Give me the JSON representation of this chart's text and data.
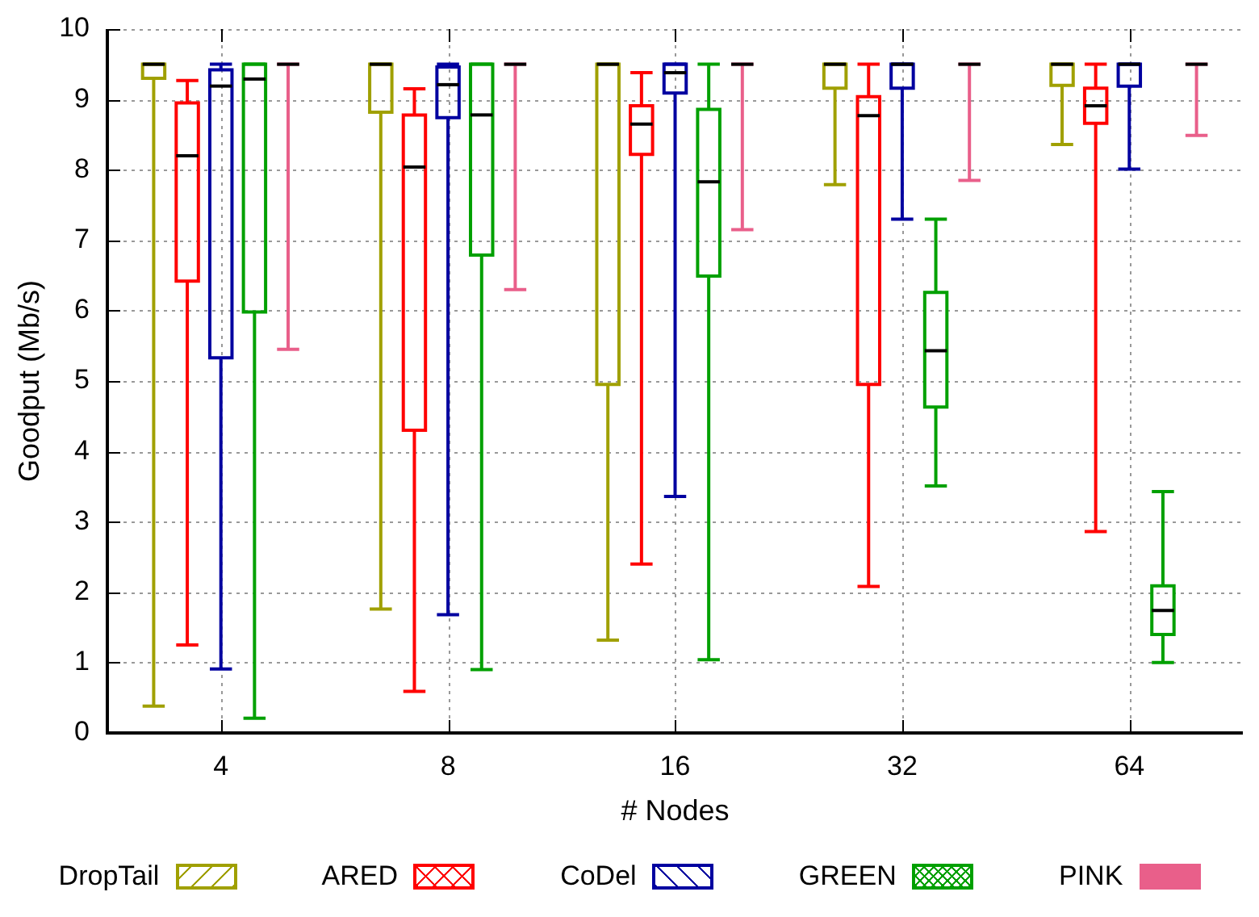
{
  "chart_data": {
    "type": "box",
    "xlabel": "# Nodes",
    "ylabel": "Goodput (Mb/s)",
    "categories": [
      "4",
      "8",
      "16",
      "32",
      "64"
    ],
    "ylim": [
      0,
      10
    ],
    "yticks": [
      0,
      1,
      2,
      3,
      4,
      5,
      6,
      7,
      8,
      9,
      10
    ],
    "grid": true,
    "legend": "bottom",
    "series": [
      {
        "name": "DropTail",
        "color": "#a0a000",
        "boxes": [
          {
            "low": 0.38,
            "q1": 9.3,
            "median": 9.5,
            "q3": 9.5,
            "high": 9.5
          },
          {
            "low": 1.76,
            "q1": 8.82,
            "median": 9.5,
            "q3": 9.5,
            "high": 9.5
          },
          {
            "low": 1.32,
            "q1": 4.95,
            "median": 9.5,
            "q3": 9.5,
            "high": 9.5
          },
          {
            "low": 7.79,
            "q1": 9.16,
            "median": 9.5,
            "q3": 9.5,
            "high": 9.5
          },
          {
            "low": 8.36,
            "q1": 9.2,
            "median": 9.5,
            "q3": 9.5,
            "high": 9.5
          }
        ]
      },
      {
        "name": "ARED",
        "color": "#ff0000",
        "boxes": [
          {
            "low": 1.25,
            "q1": 6.42,
            "median": 8.2,
            "q3": 8.95,
            "high": 9.27
          },
          {
            "low": 0.59,
            "q1": 4.3,
            "median": 8.04,
            "q3": 8.78,
            "high": 9.15
          },
          {
            "low": 2.4,
            "q1": 8.22,
            "median": 8.65,
            "q3": 8.91,
            "high": 9.38
          },
          {
            "low": 2.08,
            "q1": 4.95,
            "median": 8.77,
            "q3": 9.04,
            "high": 9.5
          },
          {
            "low": 2.86,
            "q1": 8.66,
            "median": 8.91,
            "q3": 9.16,
            "high": 9.5
          }
        ]
      },
      {
        "name": "CoDel",
        "color": "#0000a0",
        "boxes": [
          {
            "low": 0.91,
            "q1": 5.33,
            "median": 9.19,
            "q3": 9.42,
            "high": 9.5
          },
          {
            "low": 1.68,
            "q1": 8.74,
            "median": 9.21,
            "q3": 9.46,
            "high": 9.5
          },
          {
            "low": 3.36,
            "q1": 9.09,
            "median": 9.38,
            "q3": 9.5,
            "high": 9.5
          },
          {
            "low": 7.3,
            "q1": 9.16,
            "median": 9.5,
            "q3": 9.5,
            "high": 9.5
          },
          {
            "low": 8.01,
            "q1": 9.19,
            "median": 9.5,
            "q3": 9.5,
            "high": 9.5
          }
        ]
      },
      {
        "name": "GREEN",
        "color": "#00a000",
        "boxes": [
          {
            "low": 0.21,
            "q1": 5.98,
            "median": 9.29,
            "q3": 9.5,
            "high": 9.5
          },
          {
            "low": 0.9,
            "q1": 6.79,
            "median": 8.78,
            "q3": 9.5,
            "high": 9.5
          },
          {
            "low": 1.04,
            "q1": 6.49,
            "median": 7.83,
            "q3": 8.86,
            "high": 9.5
          },
          {
            "low": 3.51,
            "q1": 4.63,
            "median": 5.43,
            "q3": 6.26,
            "high": 7.3
          },
          {
            "low": 1.0,
            "q1": 1.4,
            "median": 1.74,
            "q3": 2.09,
            "high": 3.43
          }
        ]
      },
      {
        "name": "PINK",
        "color": "#e95f8a",
        "boxes": [
          {
            "low": 5.45,
            "q1": 9.5,
            "median": 9.5,
            "q3": 9.5,
            "high": 9.5
          },
          {
            "low": 6.3,
            "q1": 9.5,
            "median": 9.5,
            "q3": 9.5,
            "high": 9.5
          },
          {
            "low": 7.15,
            "q1": 9.5,
            "median": 9.5,
            "q3": 9.5,
            "high": 9.5
          },
          {
            "low": 7.85,
            "q1": 9.5,
            "median": 9.5,
            "q3": 9.5,
            "high": 9.5
          },
          {
            "low": 8.49,
            "q1": 9.5,
            "median": 9.5,
            "q3": 9.5,
            "high": 9.5
          }
        ]
      }
    ]
  }
}
